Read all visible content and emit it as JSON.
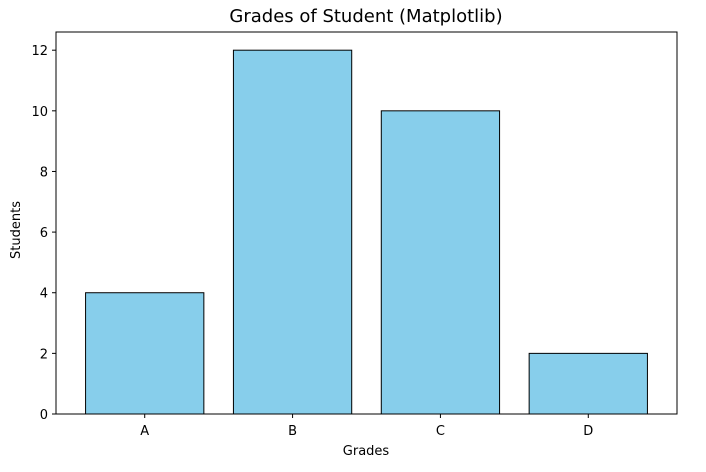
{
  "chart_data": {
    "type": "bar",
    "title": "Grades of Student (Matplotlib)",
    "xlabel": "Grades",
    "ylabel": "Students",
    "categories": [
      "A",
      "B",
      "C",
      "D"
    ],
    "values": [
      4,
      12,
      10,
      2
    ],
    "ylim": [
      0,
      12.6
    ],
    "yticks": [
      0,
      2,
      4,
      6,
      8,
      10,
      12
    ],
    "grid": false,
    "legend": "none",
    "bar_color": "#87CEEB",
    "edge_color": "#000000"
  }
}
